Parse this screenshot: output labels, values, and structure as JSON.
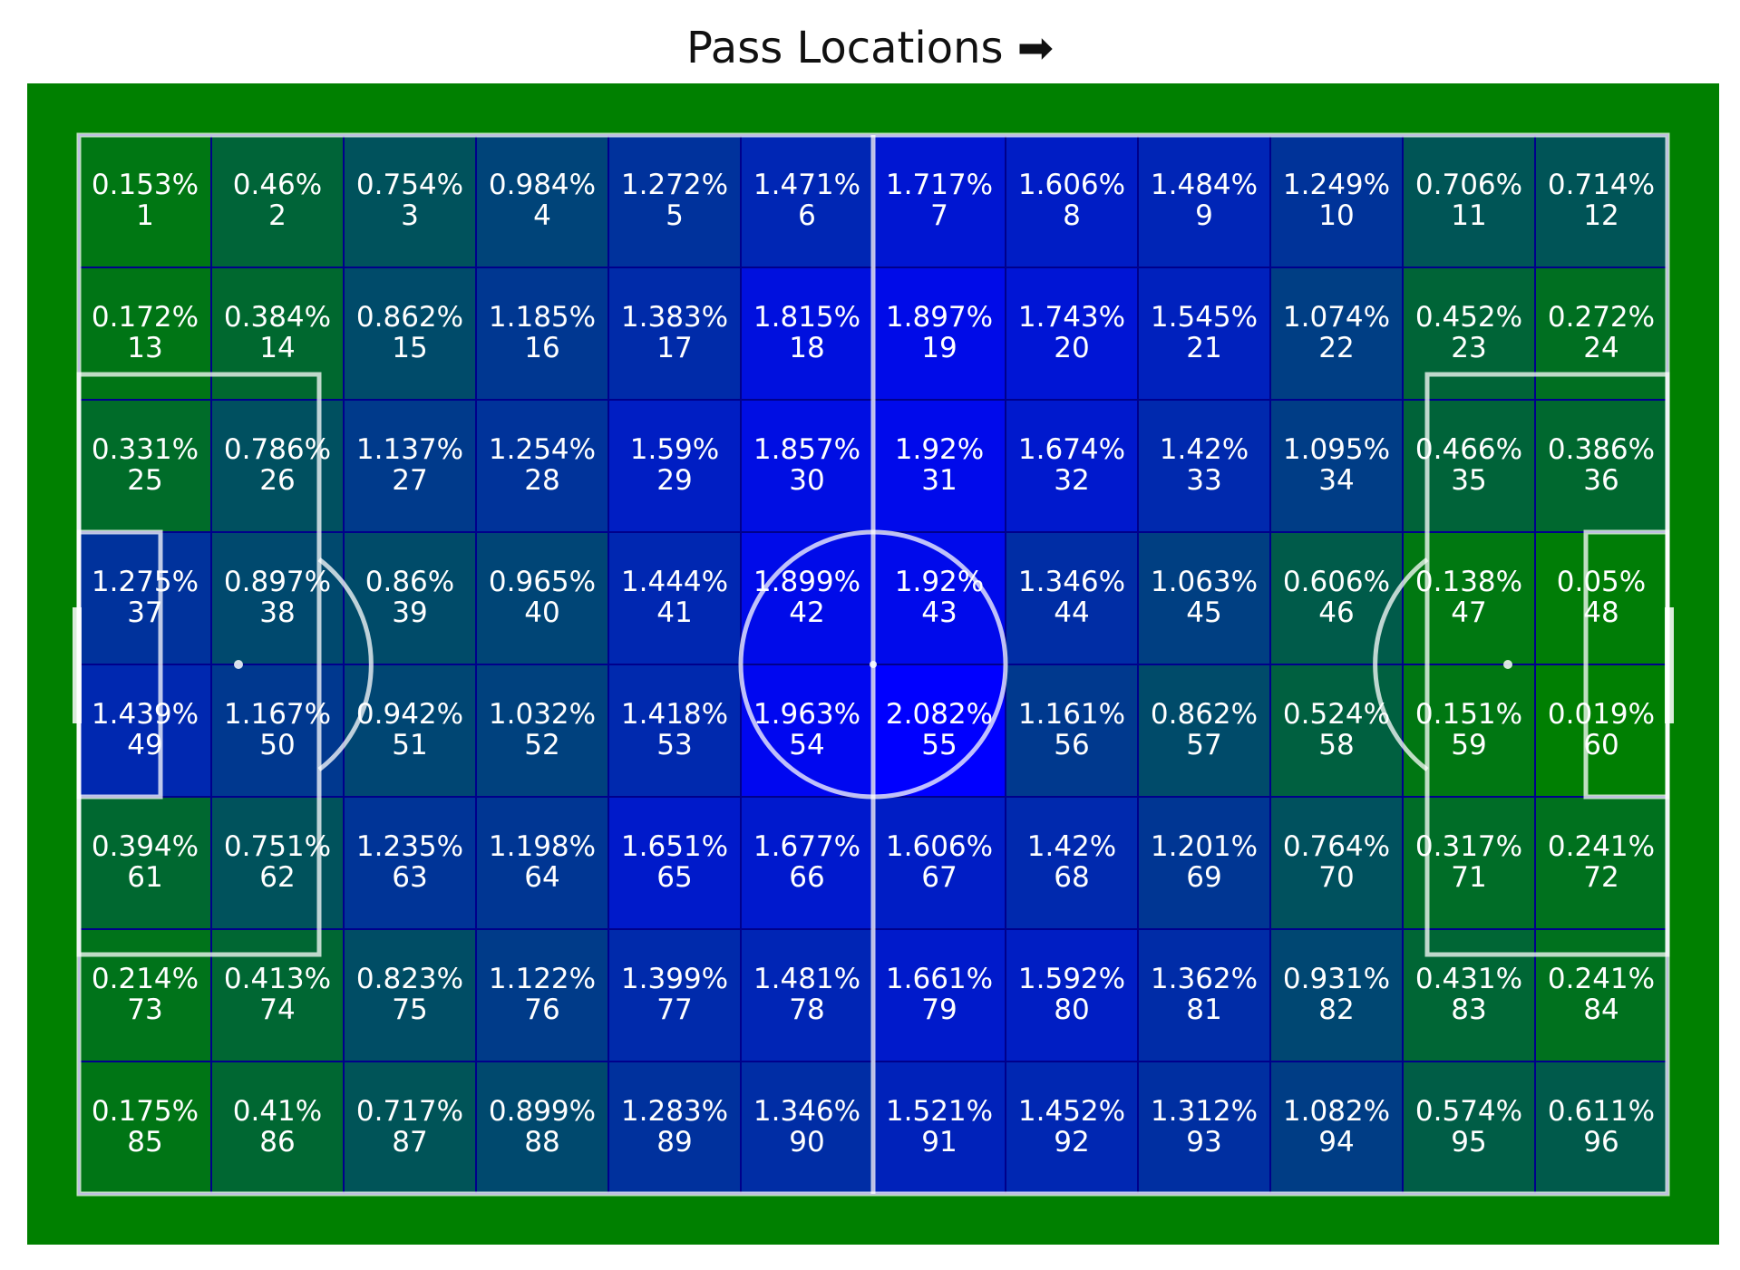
{
  "title": "Pass Locations",
  "title_arrow": "➡",
  "colors": {
    "grass": "#008000",
    "line": "#ffffff",
    "low": "#008000",
    "high": "#0000ff",
    "cell_border": "#00008b",
    "text": "#ffffff"
  },
  "chart_data": {
    "type": "heatmap",
    "rows": 8,
    "cols": 12,
    "unit": "%",
    "values": [
      [
        0.153,
        0.46,
        0.754,
        0.984,
        1.272,
        1.471,
        1.717,
        1.606,
        1.484,
        1.249,
        0.706,
        0.714
      ],
      [
        0.172,
        0.384,
        0.862,
        1.185,
        1.383,
        1.815,
        1.897,
        1.743,
        1.545,
        1.074,
        0.452,
        0.272
      ],
      [
        0.331,
        0.786,
        1.137,
        1.254,
        1.59,
        1.857,
        1.92,
        1.674,
        1.42,
        1.095,
        0.466,
        0.386
      ],
      [
        1.275,
        0.897,
        0.86,
        0.965,
        1.444,
        1.899,
        1.92,
        1.346,
        1.063,
        0.606,
        0.138,
        0.05
      ],
      [
        1.439,
        1.167,
        0.942,
        1.032,
        1.418,
        1.963,
        2.082,
        1.161,
        0.862,
        0.524,
        0.151,
        0.019
      ],
      [
        0.394,
        0.751,
        1.235,
        1.198,
        1.651,
        1.677,
        1.606,
        1.42,
        1.201,
        0.764,
        0.317,
        0.241
      ],
      [
        0.214,
        0.413,
        0.823,
        1.122,
        1.399,
        1.481,
        1.661,
        1.592,
        1.362,
        0.931,
        0.431,
        0.241
      ],
      [
        0.175,
        0.41,
        0.717,
        0.899,
        1.283,
        1.346,
        1.521,
        1.452,
        1.312,
        1.082,
        0.574,
        0.611
      ]
    ],
    "labels": [
      [
        "0.153%",
        "0.46%",
        "0.754%",
        "0.984%",
        "1.272%",
        "1.471%",
        "1.717%",
        "1.606%",
        "1.484%",
        "1.249%",
        "0.706%",
        "0.714%"
      ],
      [
        "0.172%",
        "0.384%",
        "0.862%",
        "1.185%",
        "1.383%",
        "1.815%",
        "1.897%",
        "1.743%",
        "1.545%",
        "1.074%",
        "0.452%",
        "0.272%"
      ],
      [
        "0.331%",
        "0.786%",
        "1.137%",
        "1.254%",
        "1.59%",
        "1.857%",
        "1.92%",
        "1.674%",
        "1.42%",
        "1.095%",
        "0.466%",
        "0.386%"
      ],
      [
        "1.275%",
        "0.897%",
        "0.86%",
        "0.965%",
        "1.444%",
        "1.899%",
        "1.92%",
        "1.346%",
        "1.063%",
        "0.606%",
        "0.138%",
        "0.05%"
      ],
      [
        "1.439%",
        "1.167%",
        "0.942%",
        "1.032%",
        "1.418%",
        "1.963%",
        "2.082%",
        "1.161%",
        "0.862%",
        "0.524%",
        "0.151%",
        "0.019%"
      ],
      [
        "0.394%",
        "0.751%",
        "1.235%",
        "1.198%",
        "1.651%",
        "1.677%",
        "1.606%",
        "1.42%",
        "1.201%",
        "0.764%",
        "0.317%",
        "0.241%"
      ],
      [
        "0.214%",
        "0.413%",
        "0.823%",
        "1.122%",
        "1.399%",
        "1.481%",
        "1.661%",
        "1.592%",
        "1.362%",
        "0.931%",
        "0.431%",
        "0.241%"
      ],
      [
        "0.175%",
        "0.41%",
        "0.717%",
        "0.899%",
        "1.283%",
        "1.346%",
        "1.521%",
        "1.452%",
        "1.312%",
        "1.082%",
        "0.574%",
        "0.611%"
      ]
    ],
    "zone_numbers": [
      [
        1,
        2,
        3,
        4,
        5,
        6,
        7,
        8,
        9,
        10,
        11,
        12
      ],
      [
        13,
        14,
        15,
        16,
        17,
        18,
        19,
        20,
        21,
        22,
        23,
        24
      ],
      [
        25,
        26,
        27,
        28,
        29,
        30,
        31,
        32,
        33,
        34,
        35,
        36
      ],
      [
        37,
        38,
        39,
        40,
        41,
        42,
        43,
        44,
        45,
        46,
        47,
        48
      ],
      [
        49,
        50,
        51,
        52,
        53,
        54,
        55,
        56,
        57,
        58,
        59,
        60
      ],
      [
        61,
        62,
        63,
        64,
        65,
        66,
        67,
        68,
        69,
        70,
        71,
        72
      ],
      [
        73,
        74,
        75,
        76,
        77,
        78,
        79,
        80,
        81,
        82,
        83,
        84
      ],
      [
        85,
        86,
        87,
        88,
        89,
        90,
        91,
        92,
        93,
        94,
        95,
        96
      ]
    ]
  }
}
